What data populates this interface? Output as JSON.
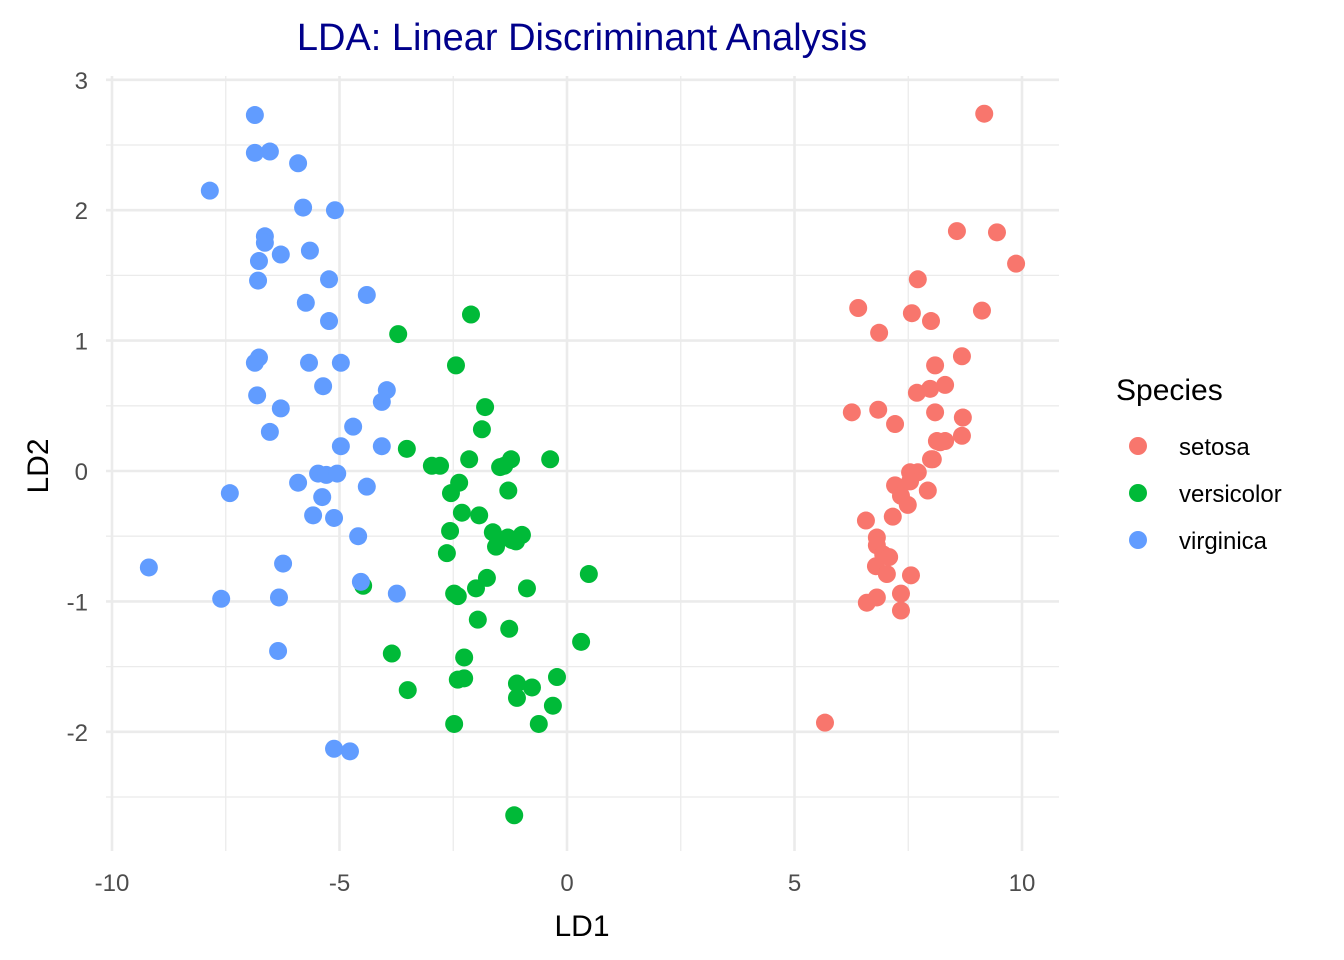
{
  "chart_data": {
    "type": "scatter",
    "title": "LDA: Linear Discriminant Analysis",
    "xlabel": "LD1",
    "ylabel": "LD2",
    "xlim": [
      -10.1,
      10.8
    ],
    "ylim": [
      -2.9,
      3.0
    ],
    "x_ticks": [
      -10,
      -5,
      0,
      5,
      10
    ],
    "x_tick_labels": [
      "-10",
      "-5",
      "0",
      "5",
      "10"
    ],
    "y_ticks": [
      -2,
      -1,
      0,
      1,
      2,
      3
    ],
    "y_tick_labels": [
      "-2",
      "-1",
      "0",
      "1",
      "2",
      "3"
    ],
    "grid": true,
    "legend": {
      "title": "Species",
      "placement": "right"
    },
    "series": [
      {
        "name": "setosa",
        "color": "#F8766D",
        "points": [
          [
            9.17,
            2.74
          ],
          [
            8.57,
            1.84
          ],
          [
            9.45,
            1.83
          ],
          [
            9.87,
            1.59
          ],
          [
            7.71,
            1.47
          ],
          [
            6.4,
            1.25
          ],
          [
            9.12,
            1.23
          ],
          [
            6.86,
            1.06
          ],
          [
            7.58,
            1.21
          ],
          [
            8.0,
            1.15
          ],
          [
            8.68,
            0.88
          ],
          [
            8.09,
            0.81
          ],
          [
            7.69,
            0.6
          ],
          [
            7.98,
            0.63
          ],
          [
            8.31,
            0.66
          ],
          [
            8.09,
            0.45
          ],
          [
            6.26,
            0.45
          ],
          [
            6.84,
            0.47
          ],
          [
            7.21,
            0.36
          ],
          [
            8.7,
            0.41
          ],
          [
            8.13,
            0.23
          ],
          [
            8.31,
            0.23
          ],
          [
            8.68,
            0.27
          ],
          [
            8.04,
            0.09
          ],
          [
            7.71,
            -0.01
          ],
          [
            7.54,
            -0.01
          ],
          [
            8.0,
            0.09
          ],
          [
            8.2,
            0.22
          ],
          [
            7.21,
            -0.11
          ],
          [
            7.54,
            -0.08
          ],
          [
            7.93,
            -0.15
          ],
          [
            7.34,
            -0.19
          ],
          [
            7.49,
            -0.26
          ],
          [
            6.57,
            -0.38
          ],
          [
            7.16,
            -0.35
          ],
          [
            6.81,
            -0.51
          ],
          [
            6.81,
            -0.57
          ],
          [
            6.95,
            -0.64
          ],
          [
            7.08,
            -0.66
          ],
          [
            6.79,
            -0.73
          ],
          [
            7.03,
            -0.79
          ],
          [
            7.56,
            -0.8
          ],
          [
            6.59,
            -1.01
          ],
          [
            6.81,
            -0.97
          ],
          [
            7.34,
            -0.94
          ],
          [
            7.34,
            -1.07
          ],
          [
            5.67,
            -1.93
          ]
        ]
      },
      {
        "name": "versicolor",
        "color": "#00BA38",
        "points": [
          [
            -2.11,
            1.2
          ],
          [
            -3.71,
            1.05
          ],
          [
            -2.44,
            0.81
          ],
          [
            -1.8,
            0.49
          ],
          [
            -1.87,
            0.32
          ],
          [
            -3.52,
            0.17
          ],
          [
            -2.97,
            0.04
          ],
          [
            -2.79,
            0.04
          ],
          [
            -2.15,
            0.09
          ],
          [
            -1.47,
            0.03
          ],
          [
            -1.23,
            0.09
          ],
          [
            -0.37,
            0.09
          ],
          [
            -2.55,
            -0.17
          ],
          [
            -2.37,
            -0.09
          ],
          [
            -1.38,
            0.04
          ],
          [
            -1.29,
            -0.15
          ],
          [
            -2.31,
            -0.32
          ],
          [
            -1.93,
            -0.34
          ],
          [
            -1.63,
            -0.47
          ],
          [
            -1.56,
            -0.58
          ],
          [
            -1.21,
            -0.53
          ],
          [
            -0.99,
            -0.49
          ],
          [
            -2.57,
            -0.46
          ],
          [
            -2.64,
            -0.63
          ],
          [
            -1.3,
            -0.51
          ],
          [
            -1.12,
            -0.54
          ],
          [
            -2.48,
            -0.94
          ],
          [
            -2.4,
            -0.96
          ],
          [
            -2.0,
            -0.9
          ],
          [
            -1.76,
            -0.82
          ],
          [
            -0.88,
            -0.9
          ],
          [
            0.48,
            -0.79
          ],
          [
            -4.48,
            -0.88
          ],
          [
            -1.96,
            -1.14
          ],
          [
            -1.27,
            -1.21
          ],
          [
            0.31,
            -1.31
          ],
          [
            -3.85,
            -1.4
          ],
          [
            -2.26,
            -1.43
          ],
          [
            -2.4,
            -1.6
          ],
          [
            -2.26,
            -1.59
          ],
          [
            -3.5,
            -1.68
          ],
          [
            -1.1,
            -1.63
          ],
          [
            -0.77,
            -1.66
          ],
          [
            -0.22,
            -1.58
          ],
          [
            -1.1,
            -1.74
          ],
          [
            -0.31,
            -1.8
          ],
          [
            -2.48,
            -1.94
          ],
          [
            -0.62,
            -1.94
          ],
          [
            -1.16,
            -2.64
          ]
        ]
      },
      {
        "name": "virginica",
        "color": "#619CFF",
        "points": [
          [
            -6.86,
            2.73
          ],
          [
            -6.86,
            2.44
          ],
          [
            -6.53,
            2.45
          ],
          [
            -5.91,
            2.36
          ],
          [
            -7.85,
            2.15
          ],
          [
            -5.8,
            2.02
          ],
          [
            -5.1,
            2.0
          ],
          [
            -6.64,
            1.8
          ],
          [
            -6.64,
            1.75
          ],
          [
            -5.65,
            1.69
          ],
          [
            -6.77,
            1.61
          ],
          [
            -6.29,
            1.66
          ],
          [
            -6.79,
            1.46
          ],
          [
            -5.23,
            1.47
          ],
          [
            -5.74,
            1.29
          ],
          [
            -4.4,
            1.35
          ],
          [
            -5.23,
            1.15
          ],
          [
            -6.86,
            0.83
          ],
          [
            -6.77,
            0.87
          ],
          [
            -5.67,
            0.83
          ],
          [
            -4.97,
            0.83
          ],
          [
            -5.36,
            0.65
          ],
          [
            -6.81,
            0.58
          ],
          [
            -3.96,
            0.62
          ],
          [
            -4.07,
            0.53
          ],
          [
            -6.29,
            0.48
          ],
          [
            -4.7,
            0.34
          ],
          [
            -6.53,
            0.3
          ],
          [
            -4.97,
            0.19
          ],
          [
            -4.07,
            0.19
          ],
          [
            -5.47,
            -0.02
          ],
          [
            -5.29,
            -0.03
          ],
          [
            -5.05,
            -0.02
          ],
          [
            -5.91,
            -0.09
          ],
          [
            -4.4,
            -0.12
          ],
          [
            -7.41,
            -0.17
          ],
          [
            -5.38,
            -0.2
          ],
          [
            -5.58,
            -0.34
          ],
          [
            -5.12,
            -0.36
          ],
          [
            -4.59,
            -0.5
          ],
          [
            -6.24,
            -0.71
          ],
          [
            -9.19,
            -0.74
          ],
          [
            -4.53,
            -0.85
          ],
          [
            -3.74,
            -0.94
          ],
          [
            -7.6,
            -0.98
          ],
          [
            -6.33,
            -0.97
          ],
          [
            -6.35,
            -1.38
          ],
          [
            -5.12,
            -2.13
          ],
          [
            -4.77,
            -2.15
          ]
        ]
      }
    ]
  }
}
